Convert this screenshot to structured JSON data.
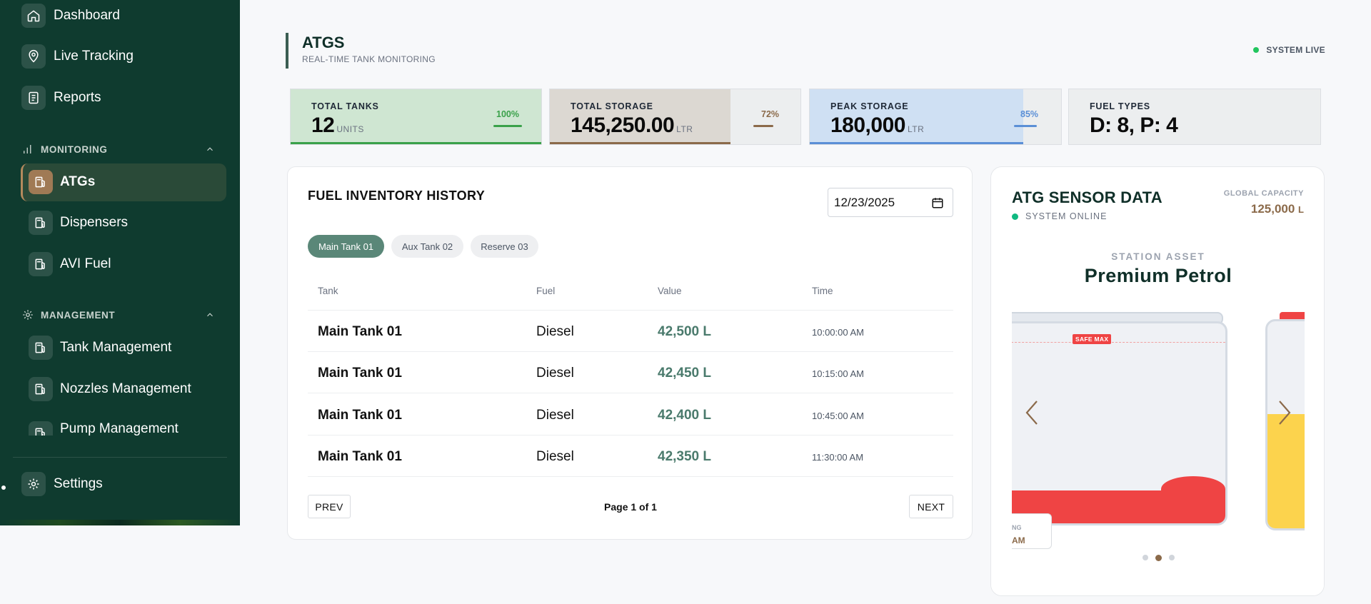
{
  "sidebar": {
    "top_items": [
      {
        "label": "Dashboard",
        "icon": "home-icon"
      },
      {
        "label": "Live Tracking",
        "icon": "location-pin-icon"
      },
      {
        "label": "Reports",
        "icon": "report-icon"
      }
    ],
    "sections": [
      {
        "label": "MONITORING",
        "icon": "bar-chart-icon",
        "items": [
          "ATGs",
          "Dispensers",
          "AVI Fuel"
        ]
      },
      {
        "label": "MANAGEMENT",
        "icon": "gear-icon",
        "items": [
          "Tank Management",
          "Nozzles Management",
          "Pump Management"
        ]
      }
    ],
    "active": "ATGs",
    "settings_label": "Settings"
  },
  "header": {
    "title": "ATGS",
    "subtitle": "REAL-TIME TANK MONITORING",
    "status": "SYSTEM LIVE"
  },
  "stats": [
    {
      "label": "TOTAL TANKS",
      "value": "12",
      "unit": "UNITS",
      "percent": "100%",
      "fill": 1.0,
      "color": "#3aa14a",
      "bg": "#cfe6d2"
    },
    {
      "label": "TOTAL STORAGE",
      "value": "145,250.00",
      "unit": "LTR",
      "percent": "72%",
      "fill": 0.72,
      "color": "#8b6a4a",
      "bg": "#dcd8d2"
    },
    {
      "label": "PEAK STORAGE",
      "value": "180,000",
      "unit": "LTR",
      "percent": "85%",
      "fill": 0.85,
      "color": "#5b8fd6",
      "bg": "#cfe0f3"
    },
    {
      "label": "FUEL TYPES",
      "value": "D: 8, P: 4"
    }
  ],
  "inventory": {
    "title": "FUEL INVENTORY HISTORY",
    "date": "12/23/2025",
    "tabs": [
      "Main Tank 01",
      "Aux Tank 02",
      "Reserve 03"
    ],
    "active_tab": "Main Tank 01",
    "columns": [
      "Tank",
      "Fuel",
      "Value",
      "Time"
    ],
    "rows": [
      {
        "tank": "Main Tank 01",
        "fuel": "Diesel",
        "value": "42,500 L",
        "time": "10:00:00 AM"
      },
      {
        "tank": "Main Tank 01",
        "fuel": "Diesel",
        "value": "42,450 L",
        "time": "10:15:00 AM"
      },
      {
        "tank": "Main Tank 01",
        "fuel": "Diesel",
        "value": "42,400 L",
        "time": "10:45:00 AM"
      },
      {
        "tank": "Main Tank 01",
        "fuel": "Diesel",
        "value": "42,350 L",
        "time": "11:30:00 AM"
      }
    ],
    "prev_label": "PREV",
    "next_label": "NEXT",
    "page_info": "Page 1 of 1"
  },
  "atg": {
    "title": "ATG SENSOR DATA",
    "status": "SYSTEM ONLINE",
    "global_capacity_label": "GLOBAL CAPACITY",
    "global_capacity_value": "125,000",
    "global_capacity_unit": "L",
    "asset_label": "STATION ASSET",
    "asset_name": "Premium Petrol",
    "safe_max_label": "SAFE MAX",
    "ghost_label": "NG",
    "ghost_value": "AM",
    "carousel_dots": 3,
    "carousel_active": 1
  }
}
